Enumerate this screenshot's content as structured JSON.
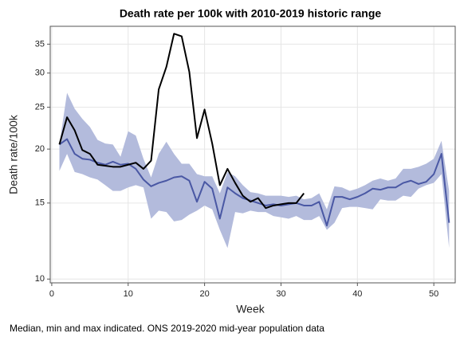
{
  "chart_data": {
    "type": "line",
    "title": "Death rate per 100k with 2010-2019 historic range",
    "x_label": "Week",
    "y_label": "Death rate/100k",
    "note": "Median, min and max indicated. ONS 2019-2020 mid-year population data",
    "x": [
      1,
      2,
      3,
      4,
      5,
      6,
      7,
      8,
      9,
      10,
      11,
      12,
      13,
      14,
      15,
      16,
      17,
      18,
      19,
      20,
      21,
      22,
      23,
      24,
      25,
      26,
      27,
      28,
      29,
      30,
      31,
      32,
      33,
      34,
      35,
      36,
      37,
      38,
      39,
      40,
      41,
      42,
      43,
      44,
      45,
      46,
      47,
      48,
      49,
      50,
      51,
      52
    ],
    "band": {
      "color": "#b3bbdc",
      "max": [
        20.5,
        27,
        24.8,
        23.5,
        22.5,
        21,
        20.6,
        20.5,
        19.2,
        22,
        21.5,
        19,
        17.2,
        19.5,
        20.8,
        19.5,
        18.5,
        18.5,
        17.5,
        17.3,
        17.3,
        15.8,
        17.7,
        17.3,
        16.5,
        15.9,
        15.8,
        15.6,
        15.6,
        15.6,
        15.5,
        15.6,
        15.3,
        15.4,
        15.8,
        14.5,
        16.4,
        16.3,
        16,
        16.2,
        16.5,
        16.9,
        17.1,
        16.9,
        17.1,
        18,
        18,
        18.2,
        18.5,
        19,
        20.9,
        16
      ],
      "min": [
        17.8,
        19.5,
        17.7,
        17.5,
        17.2,
        17,
        16.5,
        16,
        16,
        16.3,
        16.5,
        16.3,
        13.8,
        14.4,
        14.3,
        13.6,
        13.7,
        14.1,
        14.4,
        14.8,
        14.5,
        13,
        11.8,
        14.3,
        14.2,
        14.4,
        14.3,
        14.3,
        14,
        13.9,
        13.8,
        14,
        13.7,
        13.7,
        14,
        13,
        13.5,
        14.6,
        14.7,
        14.7,
        14.6,
        14.5,
        15.3,
        15.2,
        15.2,
        15.6,
        15.5,
        16.2,
        16.5,
        16.7,
        17.5,
        11.8
      ]
    },
    "series": [
      {
        "color": "#4a58a4",
        "values": [
          20.5,
          21.1,
          19.5,
          19,
          18.9,
          18.6,
          18.4,
          18.7,
          18.4,
          18.5,
          18,
          17,
          16.4,
          16.7,
          16.9,
          17.2,
          17.3,
          16.9,
          15.1,
          16.8,
          16.2,
          13.8,
          16.3,
          15.8,
          15.4,
          15.2,
          15,
          14.8,
          14.9,
          14.8,
          14.9,
          15,
          14.8,
          14.8,
          15.1,
          13.3,
          15.5,
          15.5,
          15.3,
          15.5,
          15.8,
          16.2,
          16.1,
          16.3,
          16.3,
          16.7,
          16.9,
          16.6,
          16.8,
          17.5,
          19.5,
          13.5
        ]
      },
      {
        "color": "#000000",
        "values": [
          20.5,
          23.7,
          22.1,
          19.9,
          19.5,
          18.4,
          18.3,
          18.2,
          18.2,
          18.4,
          18.6,
          18,
          18.8,
          27.5,
          31,
          37,
          36.5,
          30.2,
          21.2,
          24.7,
          20.6,
          16.5,
          18,
          16.7,
          15.6,
          15.1,
          15.4,
          14.6,
          14.8,
          14.9,
          15,
          15,
          15.8,
          null,
          null,
          null,
          null,
          null,
          null,
          null,
          null,
          null,
          null,
          null,
          null,
          null,
          null,
          null,
          null,
          null,
          null,
          null
        ]
      }
    ],
    "xlim": [
      -0.2,
      52.8
    ],
    "xticks": [
      0,
      10,
      20,
      30,
      40,
      50
    ],
    "ylim": [
      9.8,
      38.5
    ],
    "yticks": [
      10,
      15,
      20,
      25,
      30,
      35
    ],
    "log_y": true,
    "grid": true
  }
}
